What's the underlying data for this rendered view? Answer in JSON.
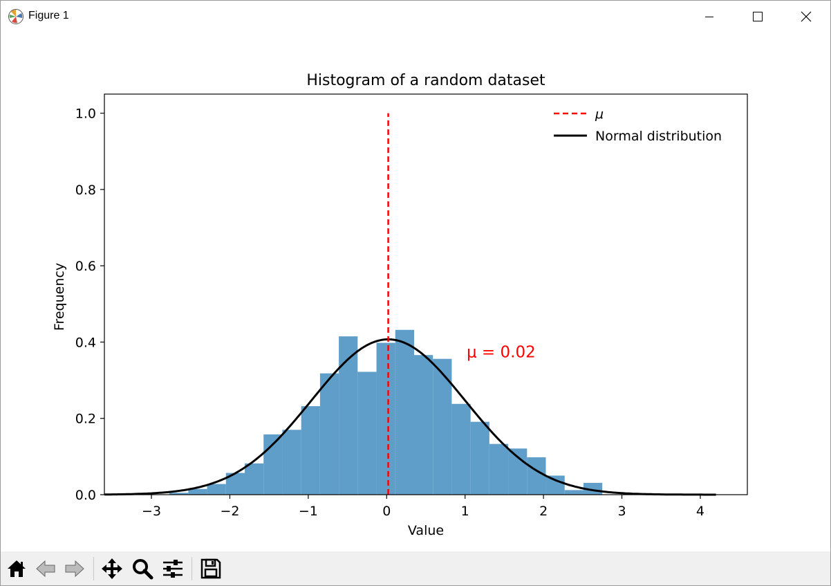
{
  "window": {
    "title": "Figure 1",
    "controls": [
      "minimize-icon",
      "maximize-icon",
      "close-icon"
    ]
  },
  "toolbar": {
    "buttons": [
      "home-icon",
      "back-icon",
      "forward-icon",
      "pan-icon",
      "zoom-icon",
      "configure-subplots-icon",
      "save-icon"
    ]
  },
  "chart_data": {
    "type": "bar",
    "title": "Histogram of a random dataset",
    "xlabel": "Value",
    "ylabel": "Frequency",
    "xlim": [
      -3.6,
      4.6
    ],
    "ylim": [
      0,
      1.05
    ],
    "xticks": [
      -3,
      -2,
      -1,
      0,
      1,
      2,
      3,
      4
    ],
    "xtick_labels": [
      "−3",
      "−2",
      "−1",
      "0",
      "1",
      "2",
      "3",
      "4"
    ],
    "yticks": [
      0.0,
      0.2,
      0.4,
      0.6,
      0.8,
      1.0
    ],
    "ytick_labels": [
      "0.0",
      "0.2",
      "0.4",
      "0.6",
      "0.8",
      "1.0"
    ],
    "bin_edges": [
      -2.77,
      -2.53,
      -2.29,
      -2.05,
      -1.81,
      -1.57,
      -1.33,
      -1.09,
      -0.85,
      -0.61,
      -0.37,
      -0.13,
      0.11,
      0.35,
      0.59,
      0.83,
      1.07,
      1.31,
      1.55,
      1.79,
      2.03,
      2.27,
      2.51,
      2.75
    ],
    "bin_values": [
      0.005,
      0.015,
      0.028,
      0.057,
      0.082,
      0.158,
      0.17,
      0.232,
      0.318,
      0.415,
      0.322,
      0.398,
      0.432,
      0.366,
      0.356,
      0.238,
      0.191,
      0.133,
      0.121,
      0.098,
      0.05,
      0.012,
      0.031
    ],
    "bar_color": "#5f9ec9",
    "mean_line": {
      "label": "μ",
      "x": 0.02,
      "y_range": [
        0,
        1.0
      ],
      "color": "#ff0000",
      "style": "dashed"
    },
    "normal_curve": {
      "label": "Normal distribution",
      "mu": 0.02,
      "sigma": 0.98,
      "x_range": [
        -3.6,
        4.2
      ],
      "color": "#000000"
    },
    "annotation": {
      "text": "μ = 0.02",
      "x": 1.02,
      "y": 0.36,
      "color": "#ff0000"
    },
    "legend": {
      "placement": "upper-right",
      "entries": [
        "μ",
        "Normal distribution"
      ]
    },
    "grid": false
  }
}
